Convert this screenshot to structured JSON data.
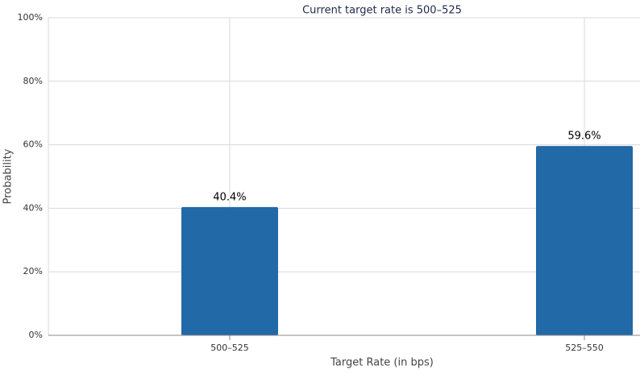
{
  "chart_data": {
    "type": "bar",
    "title": "Current target rate is 500–525",
    "x_label": "Target Rate (in bps)",
    "y_label": "Probability",
    "categories": [
      "500–525",
      "525–550"
    ],
    "values": [
      40.4,
      59.6
    ],
    "value_labels": [
      "40.4%",
      "59.6%"
    ],
    "color": "#2269a8",
    "ylim": [
      0,
      100
    ],
    "yticks": [
      {
        "value": 0,
        "label": "0%"
      },
      {
        "value": 20,
        "label": "20%"
      },
      {
        "value": 40,
        "label": "40%"
      },
      {
        "value": 60,
        "label": "60%"
      },
      {
        "value": 80,
        "label": "80%"
      },
      {
        "value": 100,
        "label": "100%"
      }
    ],
    "grid": true
  }
}
